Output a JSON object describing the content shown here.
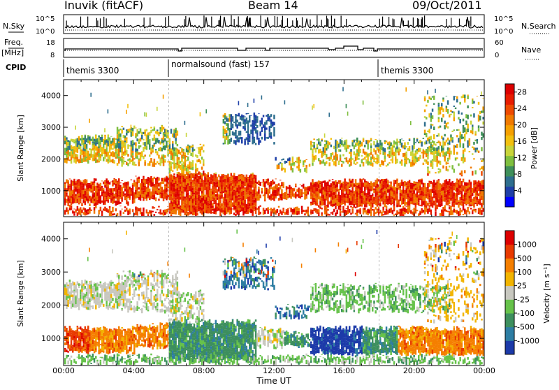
{
  "header": {
    "station": "Inuvik (fitACF)",
    "beam": "Beam 14",
    "date": "09/Oct/2011"
  },
  "panels": {
    "nsky": {
      "label": "N.Sky",
      "right_label": "N.Search",
      "ticks_left": [
        "10^5",
        "10^0"
      ],
      "ticks_right": [
        "10^5",
        "10^0"
      ]
    },
    "freq": {
      "label_line1": "Freq.",
      "label_line2": "[MHz]",
      "right_label": "Nave",
      "ticks_left": [
        "18",
        "8"
      ],
      "ticks_right": [
        "60",
        "0"
      ]
    },
    "cpid": {
      "label": "CPID",
      "segments": [
        "themis 3300",
        "normalsound (fast) 157",
        "themis 3300"
      ]
    }
  },
  "chart_data": [
    {
      "type": "heatmap",
      "name": "power",
      "xlabel": "",
      "ylabel": "Slant Range [km]",
      "x_ticks": [
        "00:00",
        "04:00",
        "08:00",
        "12:00",
        "16:00",
        "20:00",
        "00:00"
      ],
      "xlim_hours": [
        0,
        24
      ],
      "y_ticks": [
        1000,
        2000,
        3000,
        4000
      ],
      "ylim_km": [
        180,
        4500
      ],
      "colorbar": {
        "label": "Power [dB]",
        "ticks": [
          4,
          8,
          12,
          16,
          20,
          24,
          28
        ],
        "range": [
          0,
          30
        ],
        "colors": [
          "#0000ff",
          "#1f3fa8",
          "#2e6e8e",
          "#3f8f5a",
          "#7fbf3f",
          "#c8d43a",
          "#f2c00f",
          "#f5a000",
          "#f07a00",
          "#ee4a00",
          "#e81c00",
          "#dd0000"
        ]
      }
    },
    {
      "type": "heatmap",
      "name": "velocity",
      "xlabel": "Time UT",
      "ylabel": "Slant Range [km]",
      "x_ticks": [
        "00:00",
        "04:00",
        "08:00",
        "12:00",
        "16:00",
        "20:00",
        "00:00"
      ],
      "xlim_hours": [
        0,
        24
      ],
      "y_ticks": [
        1000,
        2000,
        3000,
        4000
      ],
      "ylim_km": [
        180,
        4500
      ],
      "colorbar": {
        "label": "Velocity [m s⁻¹]",
        "ticks": [
          "1000",
          "500",
          "100",
          "25",
          "-25",
          "-100",
          "-500",
          "-1000"
        ],
        "colors": [
          "#1c3aa9",
          "#2d7da3",
          "#3d8f5e",
          "#66c24a",
          "#c8c8c0",
          "#f2b400",
          "#f57f00",
          "#e83a00",
          "#dd0000"
        ]
      }
    }
  ]
}
